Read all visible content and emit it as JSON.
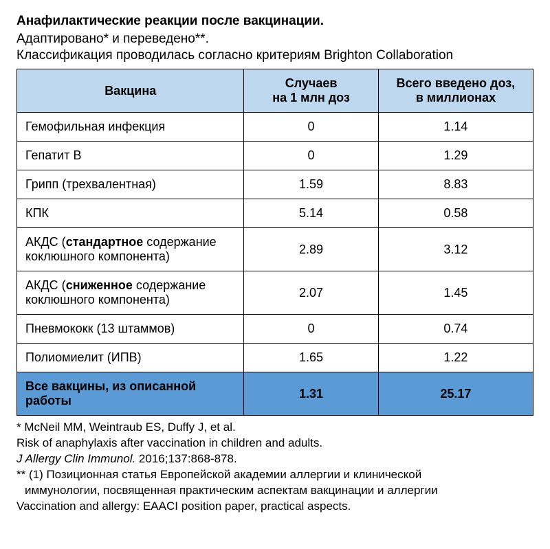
{
  "header": {
    "title": "Анафилактические реакции после вакцинации.",
    "subtitle": "Адаптировано* и переведено**.",
    "classification": "Классификация проводилась согласно критериям Brighton Collaboration"
  },
  "table": {
    "header_bg": "#bdd7ee",
    "total_bg": "#5b9bd5",
    "border_color": "#000000",
    "columns": [
      {
        "key": "vaccine",
        "label": "Вакцина",
        "width_pct": 44,
        "align": "left"
      },
      {
        "key": "cases",
        "label": "Случаев\nна 1 млн доз",
        "width_pct": 26,
        "align": "center"
      },
      {
        "key": "doses",
        "label": "Всего введено доз,\nв миллионах",
        "width_pct": 30,
        "align": "center"
      }
    ],
    "rows": [
      {
        "vaccine_plain": "Гемофильная инфекция",
        "cases": "0",
        "doses": "1.14"
      },
      {
        "vaccine_plain": "Гепатит B",
        "cases": "0",
        "doses": "1.29"
      },
      {
        "vaccine_plain": "Грипп (трехвалентная)",
        "cases": "1.59",
        "doses": "8.83"
      },
      {
        "vaccine_plain": "КПК",
        "cases": "5.14",
        "doses": "0.58"
      },
      {
        "vaccine_prefix": "АКДС (",
        "vaccine_bold": "стандартное",
        "vaccine_suffix": " содержание коклюшного компонента)",
        "cases": "2.89",
        "doses": "3.12"
      },
      {
        "vaccine_prefix": "АКДС (",
        "vaccine_bold": "сниженное",
        "vaccine_suffix": " содержание коклюшного компонента)",
        "cases": "2.07",
        "doses": "1.45"
      },
      {
        "vaccine_plain": "Пневмококк (13 штаммов)",
        "cases": "0",
        "doses": "0.74"
      },
      {
        "vaccine_plain": "Полиомиелит (ИПВ)",
        "cases": "1.65",
        "doses": "1.22"
      }
    ],
    "total": {
      "label": "Все вакцины, из описанной работы",
      "cases": "1.31",
      "doses": "25.17"
    }
  },
  "footnotes": {
    "line1": "* McNeil MM, Weintraub ES, Duffy J, et al.",
    "line2": "Risk of anaphylaxis after vaccination in children and adults.",
    "line3_italic": "J Allergy Clin Immunol.",
    "line3_rest": " 2016;137:868-878.",
    "line4": "** (1) Позиционная статья Европейской академии аллергии и клинической",
    "line5_indent": "иммунологии, посвященная практическим аспектам вакцинации и аллергии",
    "line6": "Vaccination and allergy: EAACI position paper, practical aspects."
  }
}
